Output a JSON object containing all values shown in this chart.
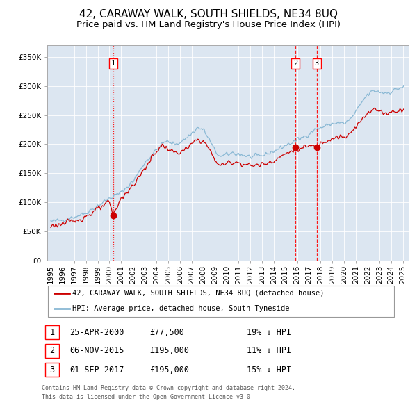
{
  "title": "42, CARAWAY WALK, SOUTH SHIELDS, NE34 8UQ",
  "subtitle": "Price paid vs. HM Land Registry's House Price Index (HPI)",
  "ylim": [
    0,
    370000
  ],
  "yticks": [
    0,
    50000,
    100000,
    150000,
    200000,
    250000,
    300000,
    350000
  ],
  "ytick_labels": [
    "£0",
    "£50K",
    "£100K",
    "£150K",
    "£200K",
    "£250K",
    "£300K",
    "£350K"
  ],
  "xlim_start": 1994.7,
  "xlim_end": 2025.5,
  "plot_bg_color": "#dce6f1",
  "transaction_color": "#cc0000",
  "hpi_color": "#89b8d4",
  "sale_dates": [
    2000.32,
    2015.84,
    2017.67
  ],
  "sale_prices": [
    77500,
    195000,
    195000
  ],
  "sale_labels": [
    "1",
    "2",
    "3"
  ],
  "sale_line_styles": [
    "dotted",
    "dashed",
    "dashed"
  ],
  "legend_line1": "42, CARAWAY WALK, SOUTH SHIELDS, NE34 8UQ (detached house)",
  "legend_line2": "HPI: Average price, detached house, South Tyneside",
  "table_entries": [
    [
      "1",
      "25-APR-2000",
      "£77,500",
      "19% ↓ HPI"
    ],
    [
      "2",
      "06-NOV-2015",
      "£195,000",
      "11% ↓ HPI"
    ],
    [
      "3",
      "01-SEP-2017",
      "£195,000",
      "15% ↓ HPI"
    ]
  ],
  "footer": "Contains HM Land Registry data © Crown copyright and database right 2024.\nThis data is licensed under the Open Government Licence v3.0.",
  "title_fontsize": 11,
  "subtitle_fontsize": 9.5,
  "tick_fontsize": 7.5
}
